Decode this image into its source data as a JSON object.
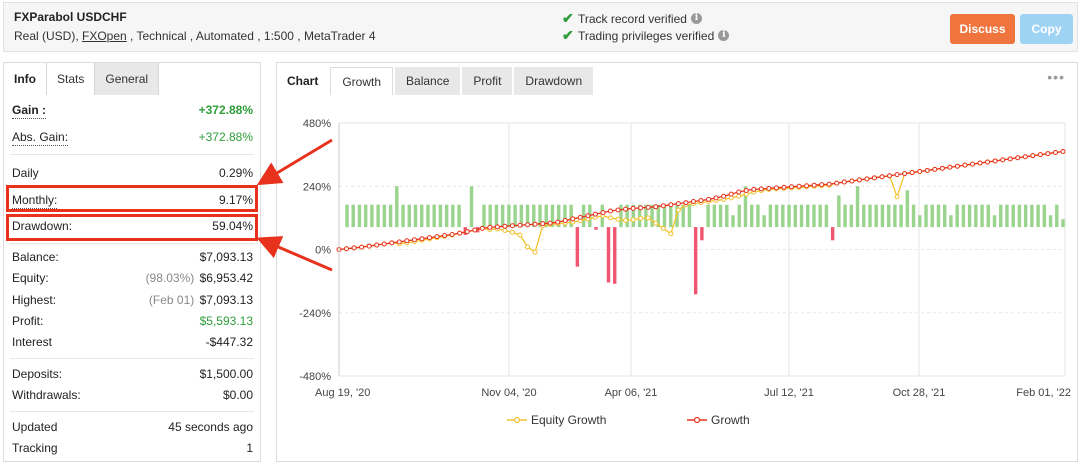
{
  "header": {
    "title": "FXParabol USDCHF",
    "info_prefix": "Real (USD), ",
    "broker": "FXOpen",
    "info_suffix": " , Technical , Automated , 1:500 , MetaTrader 4",
    "verified": [
      "Track record verified",
      "Trading privileges verified"
    ],
    "discuss_label": "Discuss",
    "copy_label": "Copy"
  },
  "left_tabs": [
    "Info",
    "Stats",
    "General"
  ],
  "stats": {
    "gain": {
      "label": "Gain :",
      "value": "+372.88%"
    },
    "abs_gain": {
      "label": "Abs. Gain:",
      "value": "+372.88%"
    },
    "daily": {
      "label": "Daily",
      "value": "0.29%"
    },
    "monthly": {
      "label": "Monthly:",
      "value": "9.17%"
    },
    "drawdown": {
      "label": "Drawdown:",
      "value": "59.04%"
    },
    "balance": {
      "label": "Balance:",
      "value": "$7,093.13"
    },
    "equity": {
      "label": "Equity:",
      "note": "(98.03%)",
      "value": "$6,953.42"
    },
    "highest": {
      "label": "Highest:",
      "note": "(Feb 01)",
      "value": "$7,093.13"
    },
    "profit": {
      "label": "Profit:",
      "value": "$5,593.13"
    },
    "interest": {
      "label": "Interest",
      "value": "-$447.32"
    },
    "deposits": {
      "label": "Deposits:",
      "value": "$1,500.00"
    },
    "withdrawals": {
      "label": "Withdrawals:",
      "value": "$0.00"
    },
    "updated": {
      "label": "Updated",
      "value": "45 seconds ago"
    },
    "tracking": {
      "label": "Tracking",
      "value": "1"
    }
  },
  "chart_tabs": [
    "Chart",
    "Growth",
    "Balance",
    "Profit",
    "Drawdown"
  ],
  "menu_dots": "•••",
  "colors": {
    "green_bar": "#9bd48e",
    "red_bar": "#ef5670",
    "growth": "#e8321e",
    "equity": "#f2c12e",
    "highlight": "#e8321e"
  },
  "chart_data": {
    "type": "bar+line",
    "y_ticks": [
      "480%",
      "240%",
      "0%",
      "-240%",
      "-480%"
    ],
    "ylim": [
      -480,
      480
    ],
    "x_ticks": [
      "Aug 19, '20",
      "Nov 04, '20",
      "Apr 06, '21",
      "Jul 12, '21",
      "Oct 28, '21",
      "Feb 01, '22"
    ],
    "legend": [
      "Equity Growth",
      "Growth"
    ],
    "monthly_bars": [
      {
        "v": 85
      },
      {
        "v": 85
      },
      {
        "v": 85
      },
      {
        "v": 85
      },
      {
        "v": 85
      },
      {
        "v": 85
      },
      {
        "v": 85
      },
      {
        "v": 85
      },
      {
        "v": 155
      },
      {
        "v": 85
      },
      {
        "v": 85
      },
      {
        "v": 85
      },
      {
        "v": 85
      },
      {
        "v": 85
      },
      {
        "v": 85
      },
      {
        "v": 85
      },
      {
        "v": 85
      },
      {
        "v": 85
      },
      {
        "v": 85
      },
      {
        "v": -30
      },
      {
        "v": 155
      },
      {
        "v": -20
      },
      {
        "v": 85
      },
      {
        "v": 85
      },
      {
        "v": 85
      },
      {
        "v": 85
      },
      {
        "v": 85
      },
      {
        "v": 85
      },
      {
        "v": 85
      },
      {
        "v": 85
      },
      {
        "v": 85
      },
      {
        "v": 85
      },
      {
        "v": 85
      },
      {
        "v": 85
      },
      {
        "v": 85
      },
      {
        "v": 85
      },
      {
        "v": 85
      },
      {
        "v": -150
      },
      {
        "v": 85
      },
      {
        "v": 85
      },
      {
        "v": -10
      },
      {
        "v": 85
      },
      {
        "v": -210
      },
      {
        "v": -215
      },
      {
        "v": 85
      },
      {
        "v": 85
      },
      {
        "v": 85
      },
      {
        "v": 85
      },
      {
        "v": 85
      },
      {
        "v": 85
      },
      {
        "v": 85
      },
      {
        "v": 85
      },
      {
        "v": 85
      },
      {
        "v": 85
      },
      {
        "v": 85
      },
      {
        "v": 85
      },
      {
        "v": -255
      },
      {
        "v": -50
      },
      {
        "v": 85
      },
      {
        "v": 85
      },
      {
        "v": 85
      },
      {
        "v": 85
      },
      {
        "v": 45
      },
      {
        "v": 85
      },
      {
        "v": 155
      },
      {
        "v": 85
      },
      {
        "v": 85
      },
      {
        "v": 45
      },
      {
        "v": 85
      },
      {
        "v": 85
      },
      {
        "v": 85
      },
      {
        "v": 85
      },
      {
        "v": 85
      },
      {
        "v": 85
      },
      {
        "v": 85
      },
      {
        "v": 85
      },
      {
        "v": 85
      },
      {
        "v": 85
      },
      {
        "v": -50
      },
      {
        "v": 120
      },
      {
        "v": 85
      },
      {
        "v": 85
      },
      {
        "v": 155
      },
      {
        "v": 85
      },
      {
        "v": 85
      },
      {
        "v": 85
      },
      {
        "v": 85
      },
      {
        "v": 85
      },
      {
        "v": 85
      },
      {
        "v": 85
      },
      {
        "v": 140
      },
      {
        "v": 85
      },
      {
        "v": 45
      },
      {
        "v": 85
      },
      {
        "v": 85
      },
      {
        "v": 85
      },
      {
        "v": 85
      },
      {
        "v": 45
      },
      {
        "v": 85
      },
      {
        "v": 85
      },
      {
        "v": 85
      },
      {
        "v": 85
      },
      {
        "v": 85
      },
      {
        "v": 85
      },
      {
        "v": 45
      },
      {
        "v": 85
      },
      {
        "v": 85
      },
      {
        "v": 85
      },
      {
        "v": 85
      },
      {
        "v": 85
      },
      {
        "v": 85
      },
      {
        "v": 85
      },
      {
        "v": 85
      },
      {
        "v": 45
      },
      {
        "v": 85
      },
      {
        "v": 30
      }
    ],
    "growth": [
      0,
      3,
      6,
      9,
      13,
      17,
      21,
      25,
      29,
      33,
      37,
      41,
      45,
      49,
      53,
      57,
      62,
      68,
      74,
      80,
      84,
      86,
      88,
      90,
      92,
      94,
      96,
      98,
      100,
      104,
      110,
      116,
      122,
      128,
      134,
      140,
      146,
      150,
      153,
      156,
      158,
      160,
      162,
      166,
      170,
      174,
      178,
      182,
      186,
      190,
      196,
      202,
      210,
      218,
      224,
      228,
      230,
      232,
      234,
      236,
      238,
      240,
      242,
      244,
      246,
      248,
      252,
      256,
      260,
      264,
      268,
      272,
      276,
      280,
      284,
      288,
      292,
      296,
      300,
      304,
      308,
      312,
      316,
      320,
      324,
      328,
      332,
      336,
      340,
      344,
      348,
      352,
      356,
      360,
      364,
      368,
      372
    ],
    "equity_growth": [
      0,
      3,
      6,
      9,
      13,
      17,
      21,
      25,
      22,
      25,
      30,
      35,
      40,
      45,
      50,
      55,
      62,
      68,
      74,
      80,
      76,
      78,
      72,
      65,
      55,
      10,
      -10,
      90,
      96,
      98,
      100,
      104,
      110,
      116,
      122,
      128,
      120,
      115,
      110,
      113,
      118,
      120,
      100,
      80,
      60,
      150,
      170,
      174,
      178,
      182,
      186,
      190,
      196,
      202,
      210,
      218,
      224,
      228,
      230,
      232,
      234,
      236,
      238,
      240,
      242,
      244,
      252,
      256,
      260,
      264,
      268,
      272,
      276,
      280,
      200,
      288,
      292,
      296,
      300,
      304,
      308,
      312,
      316,
      320,
      324,
      328,
      332,
      336,
      340,
      344,
      348,
      352,
      356,
      360,
      364,
      368,
      372
    ]
  }
}
